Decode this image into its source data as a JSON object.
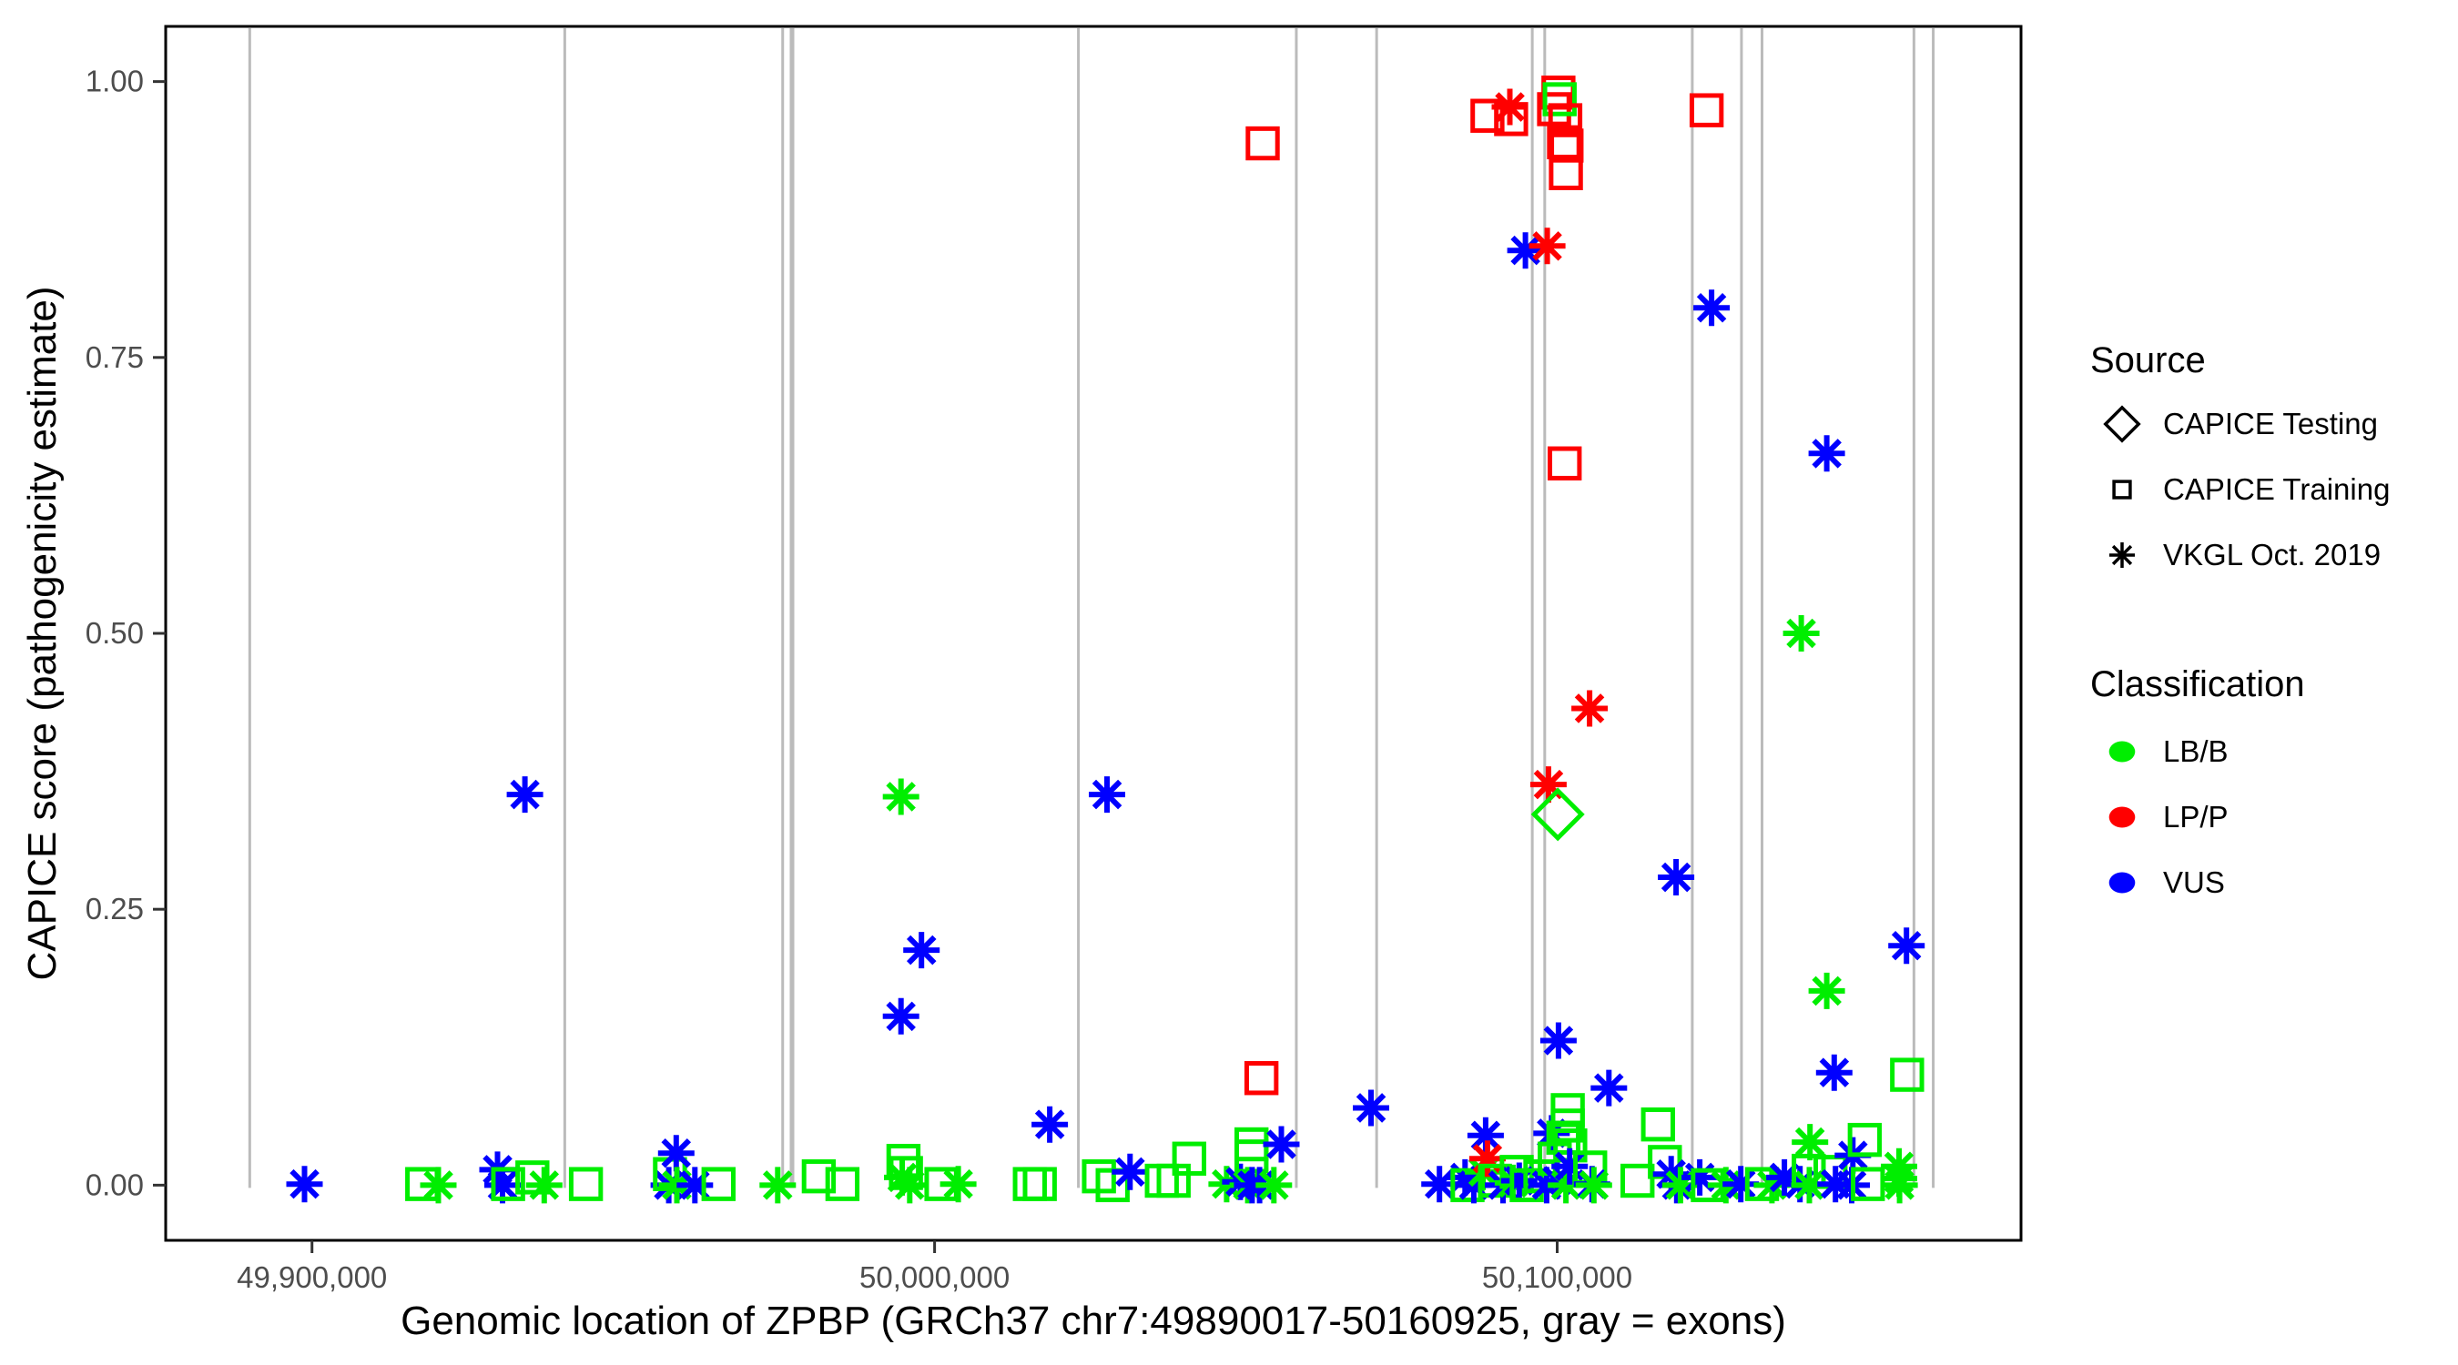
{
  "chart_data": {
    "type": "scatter",
    "title": "",
    "xlabel": "Genomic location of ZPBP (GRCh37 chr7:49890017-50160925, gray = exons)",
    "ylabel": "CAPICE score (pathogenicity estimate)",
    "x_domain": [
      49876500,
      50174500
    ],
    "y_domain": [
      -0.05,
      1.05
    ],
    "x_ticks": [
      {
        "value": 49900000,
        "label": "49,900,000"
      },
      {
        "value": 50000000,
        "label": "50,000,000"
      },
      {
        "value": 50100000,
        "label": "50,100,000"
      }
    ],
    "y_ticks": [
      {
        "value": 0.0,
        "label": "0.00"
      },
      {
        "value": 0.25,
        "label": "0.25"
      },
      {
        "value": 0.5,
        "label": "0.50"
      },
      {
        "value": 0.75,
        "label": "0.75"
      },
      {
        "value": 1.0,
        "label": "1.00"
      }
    ],
    "grid": false,
    "legend_position": "right",
    "exon_color": "#bbbbbb",
    "exon_positions": [
      49890000,
      49940600,
      49975600,
      49977100,
      50023100,
      50058100,
      50071000,
      50096000,
      50098000,
      50121700,
      50129600,
      50132900,
      50157300,
      50160400
    ],
    "source_shapes": {
      "testing": "diamond",
      "training": "square",
      "vkgl": "asterisk"
    },
    "class_colors": {
      "LB/B": "#00ee00",
      "LP/P": "#ff0000",
      "VUS": "#0000ff"
    },
    "points_format": [
      "genomic_position",
      "capice_score",
      "source",
      "classification"
    ],
    "points": [
      [
        49898800,
        0.001,
        "vkgl",
        "VUS"
      ],
      [
        49917700,
        0.001,
        "training",
        "LB/B"
      ],
      [
        49920300,
        0.0,
        "vkgl",
        "LB/B"
      ],
      [
        49929800,
        0.014,
        "vkgl",
        "VUS"
      ],
      [
        49930600,
        0.0,
        "vkgl",
        "VUS"
      ],
      [
        49931500,
        0.001,
        "training",
        "LB/B"
      ],
      [
        49934200,
        0.354,
        "vkgl",
        "VUS"
      ],
      [
        49935400,
        0.007,
        "training",
        "LB/B"
      ],
      [
        49937300,
        0.0,
        "vkgl",
        "LB/B"
      ],
      [
        49944000,
        0.001,
        "training",
        "LB/B"
      ],
      [
        49957300,
        0.0,
        "vkgl",
        "VUS"
      ],
      [
        49957500,
        0.01,
        "training",
        "LB/B"
      ],
      [
        49958500,
        0.029,
        "vkgl",
        "VUS"
      ],
      [
        49958600,
        0.0,
        "vkgl",
        "LB/B"
      ],
      [
        49961500,
        0.0,
        "vkgl",
        "VUS"
      ],
      [
        49965300,
        0.001,
        "training",
        "LB/B"
      ],
      [
        49974800,
        0.0,
        "vkgl",
        "LB/B"
      ],
      [
        49981400,
        0.008,
        "training",
        "LB/B"
      ],
      [
        49985200,
        0.001,
        "training",
        "LB/B"
      ],
      [
        49994600,
        0.352,
        "vkgl",
        "LB/B"
      ],
      [
        49994600,
        0.153,
        "vkgl",
        "VUS"
      ],
      [
        49994800,
        0.007,
        "vkgl",
        "LB/B"
      ],
      [
        49995000,
        0.022,
        "training",
        "LB/B"
      ],
      [
        49995400,
        0.011,
        "training",
        "LB/B"
      ],
      [
        49996000,
        0.0,
        "vkgl",
        "LB/B"
      ],
      [
        49997900,
        0.213,
        "vkgl",
        "VUS"
      ],
      [
        50001100,
        0.001,
        "training",
        "LB/B"
      ],
      [
        50003800,
        0.001,
        "vkgl",
        "LB/B"
      ],
      [
        50015300,
        0.001,
        "training",
        "LB/B"
      ],
      [
        50016900,
        0.001,
        "training",
        "LB/B"
      ],
      [
        50018500,
        0.055,
        "vkgl",
        "VUS"
      ],
      [
        50026400,
        0.008,
        "training",
        "LB/B"
      ],
      [
        50027700,
        0.354,
        "vkgl",
        "VUS"
      ],
      [
        50028600,
        0.0,
        "training",
        "LB/B"
      ],
      [
        50031400,
        0.012,
        "vkgl",
        "VUS"
      ],
      [
        50036500,
        0.004,
        "training",
        "LB/B"
      ],
      [
        50038400,
        0.004,
        "training",
        "LB/B"
      ],
      [
        50040900,
        0.024,
        "training",
        "LB/B"
      ],
      [
        50046900,
        0.001,
        "vkgl",
        "LB/B"
      ],
      [
        50049100,
        0.003,
        "vkgl",
        "VUS"
      ],
      [
        50050300,
        0.0,
        "vkgl",
        "LB/B"
      ],
      [
        50050900,
        0.037,
        "training",
        "LB/B"
      ],
      [
        50050900,
        0.026,
        "training",
        "LB/B"
      ],
      [
        50051000,
        0.0,
        "vkgl",
        "VUS"
      ],
      [
        50052200,
        0.0,
        "vkgl",
        "VUS"
      ],
      [
        50052500,
        0.097,
        "training",
        "LP/P"
      ],
      [
        50052700,
        0.944,
        "training",
        "LP/P"
      ],
      [
        50054500,
        0.0,
        "vkgl",
        "LB/B"
      ],
      [
        50055700,
        0.037,
        "vkgl",
        "VUS"
      ],
      [
        50070100,
        0.07,
        "vkgl",
        "VUS"
      ],
      [
        50081100,
        0.001,
        "vkgl",
        "VUS"
      ],
      [
        50085200,
        0.007,
        "vkgl",
        "VUS"
      ],
      [
        50085600,
        0.0,
        "training",
        "LB/B"
      ],
      [
        50086600,
        0.0,
        "vkgl",
        "VUS"
      ],
      [
        50088100,
        0.012,
        "vkgl",
        "LB/B"
      ],
      [
        50088500,
        0.045,
        "vkgl",
        "VUS"
      ],
      [
        50088800,
        0.024,
        "vkgl",
        "LP/P"
      ],
      [
        50088800,
        0.969,
        "training",
        "LP/P"
      ],
      [
        50090000,
        0.004,
        "training",
        "LB/B"
      ],
      [
        50091300,
        0.0,
        "vkgl",
        "VUS"
      ],
      [
        50092400,
        0.977,
        "vkgl",
        "LP/P"
      ],
      [
        50092600,
        0.966,
        "training",
        "LP/P"
      ],
      [
        50092900,
        0.002,
        "vkgl",
        "LB/B"
      ],
      [
        50093500,
        0.012,
        "training",
        "LB/B"
      ],
      [
        50093900,
        0.004,
        "vkgl",
        "VUS"
      ],
      [
        50094900,
        0.847,
        "vkgl",
        "VUS"
      ],
      [
        50095100,
        0.0,
        "training",
        "LB/B"
      ],
      [
        50097300,
        0.008,
        "training",
        "LB/B"
      ],
      [
        50098300,
        0.0,
        "vkgl",
        "VUS"
      ],
      [
        50098400,
        0.851,
        "vkgl",
        "LP/P"
      ],
      [
        50098600,
        0.363,
        "vkgl",
        "LP/P"
      ],
      [
        50099100,
        0.047,
        "vkgl",
        "VUS"
      ],
      [
        50099500,
        0.975,
        "training",
        "LP/P"
      ],
      [
        50099600,
        0.024,
        "training",
        "LB/B"
      ],
      [
        50100000,
        0.004,
        "vkgl",
        "VUS"
      ],
      [
        50100100,
        0.336,
        "testing",
        "LB/B"
      ],
      [
        50100200,
        0.99,
        "training",
        "LP/P"
      ],
      [
        50100200,
        0.131,
        "vkgl",
        "VUS"
      ],
      [
        50100400,
        0.984,
        "training",
        "LB/B"
      ],
      [
        50101000,
        0.043,
        "training",
        "LB/B"
      ],
      [
        50101100,
        0.945,
        "training",
        "LP/P"
      ],
      [
        50101200,
        0.654,
        "training",
        "LP/P"
      ],
      [
        50101300,
        0.965,
        "training",
        "LP/P"
      ],
      [
        50101400,
        0.917,
        "training",
        "LP/P"
      ],
      [
        50101400,
        0.0,
        "vkgl",
        "LB/B"
      ],
      [
        50101500,
        0.942,
        "training",
        "LP/P"
      ],
      [
        50101700,
        0.068,
        "training",
        "LB/B"
      ],
      [
        50101700,
        0.054,
        "training",
        "LB/B"
      ],
      [
        50102100,
        0.036,
        "training",
        "LB/B"
      ],
      [
        50102000,
        0.017,
        "vkgl",
        "VUS"
      ],
      [
        50105200,
        0.432,
        "vkgl",
        "LP/P"
      ],
      [
        50105300,
        0.016,
        "training",
        "LB/B"
      ],
      [
        50105600,
        0.001,
        "vkgl",
        "VUS"
      ],
      [
        50105900,
        0.0,
        "vkgl",
        "LB/B"
      ],
      [
        50108300,
        0.088,
        "vkgl",
        "VUS"
      ],
      [
        50112900,
        0.004,
        "training",
        "LB/B"
      ],
      [
        50116200,
        0.055,
        "training",
        "LB/B"
      ],
      [
        50117300,
        0.021,
        "training",
        "LB/B"
      ],
      [
        50118300,
        0.01,
        "vkgl",
        "VUS"
      ],
      [
        50119100,
        0.279,
        "vkgl",
        "VUS"
      ],
      [
        50119200,
        0.0,
        "vkgl",
        "VUS"
      ],
      [
        50119800,
        0.0,
        "vkgl",
        "LB/B"
      ],
      [
        50122900,
        0.007,
        "vkgl",
        "VUS"
      ],
      [
        50124000,
        0.974,
        "training",
        "LP/P"
      ],
      [
        50124200,
        0.0,
        "training",
        "LB/B"
      ],
      [
        50124800,
        0.795,
        "vkgl",
        "VUS"
      ],
      [
        50127100,
        0.0,
        "vkgl",
        "LB/B"
      ],
      [
        50129500,
        0.001,
        "vkgl",
        "VUS"
      ],
      [
        50132900,
        0.001,
        "training",
        "LB/B"
      ],
      [
        50134500,
        0.0,
        "vkgl",
        "LB/B"
      ],
      [
        50136500,
        0.007,
        "vkgl",
        "VUS"
      ],
      [
        50139000,
        0.001,
        "vkgl",
        "VUS"
      ],
      [
        50139200,
        0.5,
        "vkgl",
        "LB/B"
      ],
      [
        50140400,
        0.013,
        "training",
        "LB/B"
      ],
      [
        50140500,
        0.0,
        "vkgl",
        "LB/B"
      ],
      [
        50140600,
        0.039,
        "vkgl",
        "LB/B"
      ],
      [
        50143300,
        0.663,
        "vkgl",
        "VUS"
      ],
      [
        50143300,
        0.176,
        "vkgl",
        "LB/B"
      ],
      [
        50143900,
        0.012,
        "training",
        "LB/B"
      ],
      [
        50144500,
        0.102,
        "vkgl",
        "VUS"
      ],
      [
        50144700,
        0.001,
        "vkgl",
        "VUS"
      ],
      [
        50147300,
        0.0,
        "vkgl",
        "VUS"
      ],
      [
        50147500,
        0.027,
        "vkgl",
        "VUS"
      ],
      [
        50149400,
        0.041,
        "training",
        "LB/B"
      ],
      [
        50149900,
        0.001,
        "training",
        "LB/B"
      ],
      [
        50154900,
        0.017,
        "vkgl",
        "LB/B"
      ],
      [
        50154900,
        0.006,
        "vkgl",
        "LB/B"
      ],
      [
        50155000,
        0.0,
        "vkgl",
        "LB/B"
      ],
      [
        50156100,
        0.217,
        "vkgl",
        "VUS"
      ],
      [
        50156200,
        0.1,
        "training",
        "LB/B"
      ]
    ]
  },
  "legend": {
    "source": {
      "title": "Source",
      "items": [
        {
          "label": "CAPICE Testing",
          "marker": "diamond"
        },
        {
          "label": "CAPICE Training",
          "marker": "square"
        },
        {
          "label": "VKGL Oct. 2019",
          "marker": "asterisk"
        }
      ]
    },
    "classification": {
      "title": "Classification",
      "items": [
        {
          "label": "LB/B",
          "color": "#00ee00"
        },
        {
          "label": "LP/P",
          "color": "#ff0000"
        },
        {
          "label": "VUS",
          "color": "#0000ff"
        }
      ]
    }
  }
}
